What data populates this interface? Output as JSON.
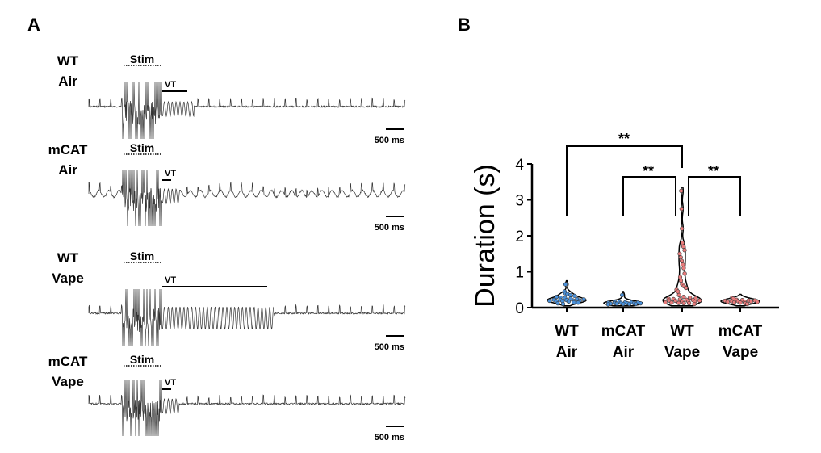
{
  "panel_a": {
    "letter": "A",
    "rows": [
      {
        "genotype": "WT",
        "exposure": "Air",
        "stim_label": "Stim",
        "vt_label": "VT",
        "scale_label": "500 ms",
        "vt_extent": "short"
      },
      {
        "genotype": "mCAT",
        "exposure": "Air",
        "stim_label": "Stim",
        "vt_label": "VT",
        "scale_label": "500 ms",
        "vt_extent": "very short"
      },
      {
        "genotype": "WT",
        "exposure": "Vape",
        "stim_label": "Stim",
        "vt_label": "VT",
        "scale_label": "500 ms",
        "vt_extent": "long"
      },
      {
        "genotype": "mCAT",
        "exposure": "Vape",
        "stim_label": "Stim",
        "vt_label": "VT",
        "scale_label": "500 ms",
        "vt_extent": "very short"
      }
    ]
  },
  "panel_b": {
    "letter": "B"
  },
  "chart_data": {
    "type": "violin",
    "ylabel": "Duration (s)",
    "ylim": [
      0,
      4
    ],
    "yticks": [
      "0",
      "1",
      "2",
      "3",
      "4"
    ],
    "categories": [
      {
        "line1": "WT",
        "line2": "Air"
      },
      {
        "line1": "mCAT",
        "line2": "Air"
      },
      {
        "line1": "WT",
        "line2": "Vape"
      },
      {
        "line1": "mCAT",
        "line2": "Vape"
      }
    ],
    "colors": {
      "Air": "#4a90d9",
      "Vape": "#e87c7c"
    },
    "series": [
      {
        "values": [
          0.65,
          0.45,
          0.4,
          0.38,
          0.35,
          0.33,
          0.3,
          0.28,
          0.27,
          0.25,
          0.24,
          0.23,
          0.22,
          0.22,
          0.21,
          0.2,
          0.2,
          0.19,
          0.18,
          0.18,
          0.17,
          0.15,
          0.14,
          0.12,
          0.1
        ]
      },
      {
        "values": [
          0.35,
          0.17,
          0.16,
          0.15,
          0.15,
          0.14,
          0.14,
          0.13,
          0.13,
          0.12,
          0.12,
          0.12,
          0.11,
          0.11,
          0.1,
          0.1,
          0.1,
          0.09
        ]
      },
      {
        "values": [
          3.25,
          2.75,
          2.2,
          1.8,
          1.7,
          1.6,
          1.5,
          1.4,
          1.3,
          1.2,
          1.1,
          0.95,
          0.85,
          0.75,
          0.65,
          0.6,
          0.55,
          0.5,
          0.45,
          0.35,
          0.3,
          0.28,
          0.26,
          0.25,
          0.24,
          0.23,
          0.22,
          0.21,
          0.2,
          0.2,
          0.19,
          0.18,
          0.17,
          0.16,
          0.15,
          0.14,
          0.13,
          0.12,
          0.12,
          0.1
        ]
      },
      {
        "values": [
          0.27,
          0.25,
          0.22,
          0.21,
          0.2,
          0.2,
          0.19,
          0.18,
          0.18,
          0.17,
          0.17,
          0.16,
          0.16,
          0.15,
          0.14,
          0.12,
          0.1
        ]
      }
    ],
    "comparisons": [
      {
        "groups": [
          "WT Air",
          "WT Vape"
        ],
        "label": "**"
      },
      {
        "groups": [
          "mCAT Air",
          "WT Vape"
        ],
        "label": "**"
      },
      {
        "groups": [
          "WT Vape",
          "mCAT Vape"
        ],
        "label": "**"
      }
    ]
  }
}
